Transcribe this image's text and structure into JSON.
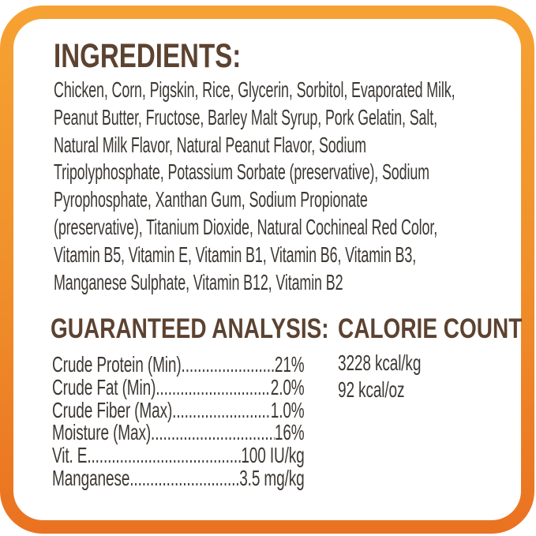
{
  "colors": {
    "frame_orange_top": "#F6A233",
    "frame_orange_bottom": "#EA7221",
    "heading_brown": "#5C4230",
    "body_text": "#3D3833"
  },
  "ingredients": {
    "heading": "INGREDIENTS:",
    "lines": [
      "Chicken, Corn, Pigskin, Rice, Glycerin, Sorbitol, Evaporated Milk,",
      "Peanut Butter, Fructose, Barley Malt Syrup, Pork Gelatin, Salt,",
      "Natural Milk Flavor, Natural Peanut Flavor, Sodium",
      "Tripolyphosphate, Potassium Sorbate (preservative), Sodium",
      "Pyrophosphate, Xanthan Gum, Sodium Propionate",
      "(preservative), Titanium Dioxide, Natural Cochineal Red Color,",
      "Vitamin B5, Vitamin E, Vitamin B1, Vitamin B6, Vitamin B3,",
      "Manganese Sulphate, Vitamin B12, Vitamin B2"
    ]
  },
  "analysis": {
    "heading": "GUARANTEED ANALYSIS:",
    "leader": "......................................................................",
    "rows": [
      {
        "label": "Crude Protein (Min)",
        "value": "21%"
      },
      {
        "label": "Crude Fat (Min)",
        "value": "2.0%"
      },
      {
        "label": "Crude Fiber (Max)",
        "value": "1.0%"
      },
      {
        "label": "Moisture (Max)",
        "value": "16%"
      },
      {
        "label": "Vit. E",
        "value": "100 IU/kg"
      },
      {
        "label": "Manganese",
        "value": "3.5 mg/kg"
      }
    ]
  },
  "calories": {
    "heading": "CALORIE COUNT",
    "lines": [
      "3228 kcal/kg",
      "92 kcal/oz"
    ]
  }
}
